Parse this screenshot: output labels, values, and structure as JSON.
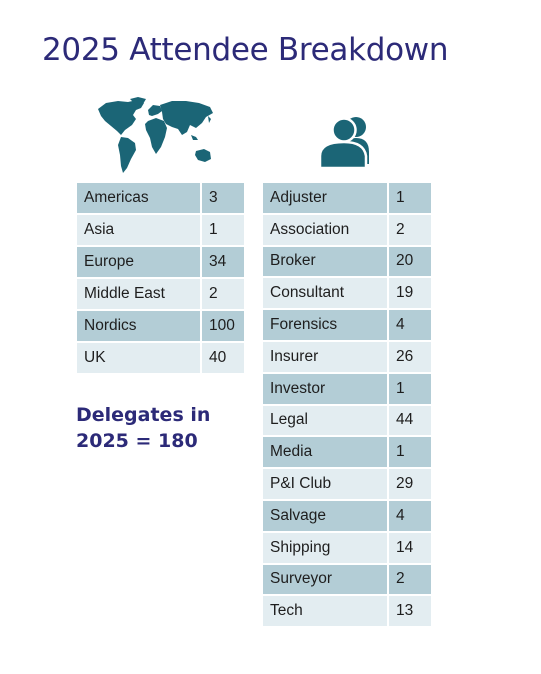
{
  "title": "2025 Attendee Breakdown",
  "icons": {
    "world": "world-map-icon",
    "people": "people-group-icon"
  },
  "colors": {
    "title": "#2c2a78",
    "icon": "#1b6576",
    "row_dark": "#b3cdd6",
    "row_light": "#e3edf1"
  },
  "regions": [
    {
      "name": "Americas",
      "count": "3"
    },
    {
      "name": "Asia",
      "count": "1"
    },
    {
      "name": "Europe",
      "count": "34"
    },
    {
      "name": "Middle East",
      "count": "2"
    },
    {
      "name": "Nordics",
      "count": "100"
    },
    {
      "name": "UK",
      "count": "40"
    }
  ],
  "sectors": [
    {
      "name": "Adjuster",
      "count": "1"
    },
    {
      "name": "Association",
      "count": "2"
    },
    {
      "name": "Broker",
      "count": "20"
    },
    {
      "name": "Consultant",
      "count": "19"
    },
    {
      "name": "Forensics",
      "count": "4"
    },
    {
      "name": "Insurer",
      "count": "26"
    },
    {
      "name": "Investor",
      "count": "1"
    },
    {
      "name": "Legal",
      "count": "44"
    },
    {
      "name": "Media",
      "count": "1"
    },
    {
      "name": "P&I Club",
      "count": "29"
    },
    {
      "name": "Salvage",
      "count": "4"
    },
    {
      "name": "Shipping",
      "count": "14"
    },
    {
      "name": "Surveyor",
      "count": "2"
    },
    {
      "name": "Tech",
      "count": "13"
    }
  ],
  "delegates": {
    "line1": "Delegates in",
    "line2": "2025 = 180"
  }
}
